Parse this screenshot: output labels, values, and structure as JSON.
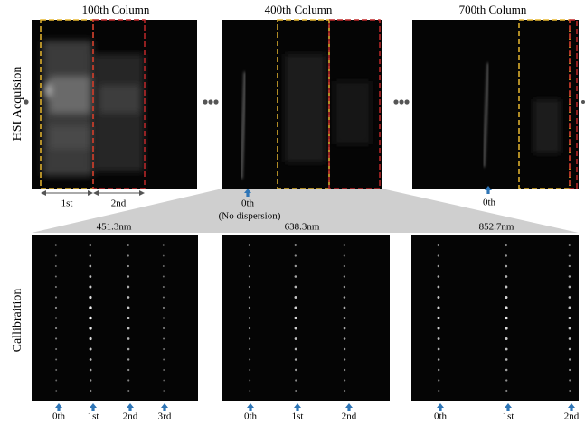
{
  "row_labels": [
    "HSI Acquision",
    "Callibraition"
  ],
  "top_panels": [
    {
      "title": "100th Column",
      "labels": [
        "1st",
        "2nd"
      ]
    },
    {
      "title": "400th Column",
      "labels": [
        "0th",
        "(No dispersion)"
      ]
    },
    {
      "title": "700th Column",
      "labels": [
        "0th"
      ]
    }
  ],
  "bottom_panels": [
    {
      "title": "451.3nm",
      "labels": [
        "0th",
        "1st",
        "2nd",
        "3rd"
      ]
    },
    {
      "title": "638.3nm",
      "labels": [
        "0th",
        "1st",
        "2nd"
      ]
    },
    {
      "title": "852.7nm",
      "labels": [
        "0th",
        "1st",
        "2nd"
      ]
    }
  ]
}
